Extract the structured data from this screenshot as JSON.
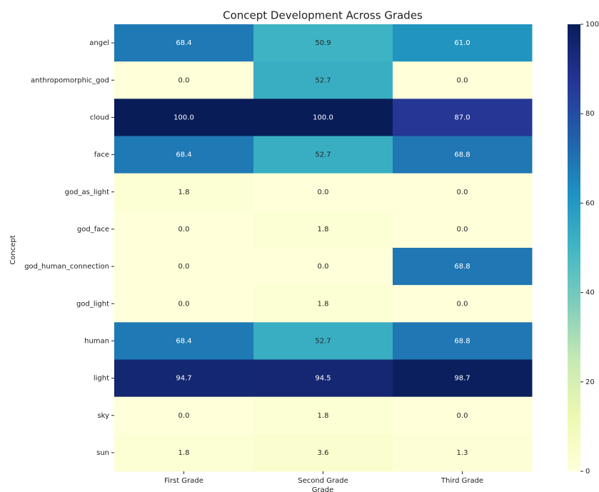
{
  "chart_data": {
    "type": "heatmap",
    "title": "Concept Development Across Grades",
    "xlabel": "Grade",
    "ylabel": "Concept",
    "x_categories": [
      "First Grade",
      "Second Grade",
      "Third Grade"
    ],
    "y_categories": [
      "angel",
      "anthropomorphic_god",
      "cloud",
      "face",
      "god_as_light",
      "god_face",
      "god_human_connection",
      "god_light",
      "human",
      "light",
      "sky",
      "sun"
    ],
    "values": [
      [
        68.4,
        50.9,
        61.0
      ],
      [
        0,
        52.7,
        0
      ],
      [
        100,
        100,
        87
      ],
      [
        68.4,
        52.7,
        68.8
      ],
      [
        1.8,
        0,
        0
      ],
      [
        0,
        1.8,
        0
      ],
      [
        0,
        0,
        68.8
      ],
      [
        0,
        1.8,
        0
      ],
      [
        68.4,
        52.7,
        68.8
      ],
      [
        94.7,
        94.5,
        98.7
      ],
      [
        0,
        1.8,
        0
      ],
      [
        1.8,
        3.6,
        1.3
      ]
    ],
    "value_labels": [
      [
        "68.4",
        "50.9",
        "61.0"
      ],
      [
        "0.0",
        "52.7",
        "0.0"
      ],
      [
        "100.0",
        "100.0",
        "87.0"
      ],
      [
        "68.4",
        "52.7",
        "68.8"
      ],
      [
        "1.8",
        "0.0",
        "0.0"
      ],
      [
        "0.0",
        "1.8",
        "0.0"
      ],
      [
        "0.0",
        "0.0",
        "68.8"
      ],
      [
        "0.0",
        "1.8",
        "0.0"
      ],
      [
        "68.4",
        "52.7",
        "68.8"
      ],
      [
        "94.7",
        "94.5",
        "98.7"
      ],
      [
        "0.0",
        "1.8",
        "0.0"
      ],
      [
        "1.8",
        "3.6",
        "1.3"
      ]
    ],
    "colormap": [
      "#ffffd9",
      "#edf8b1",
      "#c7e9b4",
      "#7fcdbb",
      "#41b6c4",
      "#1d91c0",
      "#225ea8",
      "#253494",
      "#081d58"
    ],
    "clim": [
      0,
      100
    ],
    "cticks": [
      0,
      20,
      40,
      60,
      80,
      100
    ]
  }
}
